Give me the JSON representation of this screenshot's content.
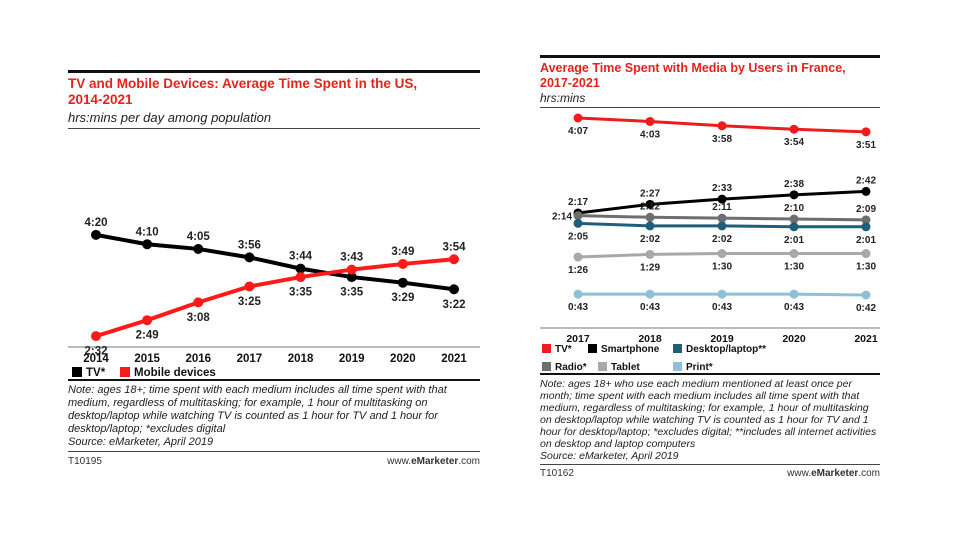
{
  "left": {
    "title_line1": "TV and Mobile Devices: Average Time Spent in the US,",
    "title_line2": "2014-2021",
    "subtitle": "hrs:mins per day among population",
    "note": "Note: ages 18+; time spent with each medium includes all time spent with that medium, regardless of multitasking; for example, 1 hour of multitasking on desktop/laptop while watching TV is counted as 1 hour for TV and 1 hour for desktop/laptop; *excludes digital",
    "source": "Source: eMarketer, April 2019",
    "code": "T10195",
    "brand_prefix": "www.",
    "brand_bold": "eMarketer",
    "brand_suffix": ".com"
  },
  "right": {
    "title_line1": "Average Time Spent with Media by Users in France,",
    "title_line2": "2017-2021",
    "subtitle": "hrs:mins",
    "note": "Note: ages 18+ who use each medium mentioned at least once per month; time spent with each medium includes all time spent with that medium, regardless of multitasking; for example, 1 hour of multitasking on desktop/laptop while watching TV is counted as 1 hour for TV and 1 hour for desktop/laptop; *excludes digital; **includes all internet activities on desktop and laptop computers",
    "source": "Source: eMarketer, April 2019",
    "code": "T10162",
    "brand_prefix": "www.",
    "brand_bold": "eMarketer",
    "brand_suffix": ".com"
  },
  "chart_data": [
    {
      "type": "line",
      "title": "TV and Mobile Devices: Average Time Spent in the US, 2014-2021",
      "subtitle": "hrs:mins per day among population",
      "x": [
        "2014",
        "2015",
        "2016",
        "2017",
        "2018",
        "2019",
        "2020",
        "2021"
      ],
      "series": [
        {
          "name": "TV*",
          "color": "#000000",
          "values": [
            260,
            250,
            245,
            236,
            224,
            215,
            209,
            202
          ],
          "labels": [
            "4:20",
            "4:10",
            "4:05",
            "3:56",
            "3:44",
            "3:35",
            "3:29",
            "3:22"
          ],
          "label_pos": [
            "above",
            "above",
            "above",
            "above",
            "above",
            "below",
            "below",
            "below"
          ]
        },
        {
          "name": "Mobile devices",
          "color": "#ff1a1a",
          "values": [
            152,
            169,
            188,
            205,
            215,
            223,
            229,
            234
          ],
          "labels": [
            "2:32",
            "2:49",
            "3:08",
            "3:25",
            "3:35",
            "3:43",
            "3:49",
            "3:54"
          ],
          "label_pos": [
            "below",
            "below",
            "below",
            "below",
            "below",
            "above",
            "above",
            "above"
          ]
        }
      ],
      "legend_placement": "bottom-left"
    },
    {
      "type": "line",
      "title": "Average Time Spent with Media by Users in France, 2017-2021",
      "subtitle": "hrs:mins",
      "x": [
        "2017",
        "2018",
        "2019",
        "2020",
        "2021"
      ],
      "series": [
        {
          "name": "TV*",
          "color": "#ee1c1c",
          "values": [
            247,
            243,
            238,
            234,
            231
          ],
          "labels": [
            "4:07",
            "4:03",
            "3:58",
            "3:54",
            "3:51"
          ],
          "label_pos": [
            "below",
            "below",
            "below",
            "below",
            "below"
          ]
        },
        {
          "name": "Smartphone",
          "color": "#000000",
          "values": [
            137,
            147,
            153,
            158,
            162
          ],
          "labels": [
            "2:17",
            "2:27",
            "2:33",
            "2:38",
            "2:42"
          ],
          "label_pos": [
            "above",
            "above",
            "above",
            "above",
            "above"
          ]
        },
        {
          "name": "Radio*",
          "color": "#6e6e6e",
          "values": [
            134,
            132,
            131,
            130,
            129
          ],
          "labels": [
            "2:14",
            "2:12",
            "2:11",
            "2:10",
            "2:09"
          ],
          "label_pos": [
            "left",
            "above",
            "above",
            "above",
            "above"
          ]
        },
        {
          "name": "Desktop/laptop**",
          "color": "#1f5f7a",
          "values": [
            125,
            122,
            122,
            121,
            121
          ],
          "labels": [
            "2:05",
            "2:02",
            "2:02",
            "2:01",
            "2:01"
          ],
          "label_pos": [
            "below",
            "below",
            "below",
            "below",
            "below"
          ]
        },
        {
          "name": "Tablet",
          "color": "#a8a8a8",
          "values": [
            86,
            89,
            90,
            90,
            90
          ],
          "labels": [
            "1:26",
            "1:29",
            "1:30",
            "1:30",
            "1:30"
          ],
          "label_pos": [
            "below",
            "below",
            "below",
            "below",
            "below"
          ]
        },
        {
          "name": "Print*",
          "color": "#8ec0d8",
          "values": [
            43,
            43,
            43,
            43,
            42
          ],
          "labels": [
            "0:43",
            "0:43",
            "0:43",
            "0:43",
            "0:42"
          ],
          "label_pos": [
            "below",
            "below",
            "below",
            "below",
            "below"
          ]
        }
      ],
      "legend_placement": "bottom"
    }
  ]
}
